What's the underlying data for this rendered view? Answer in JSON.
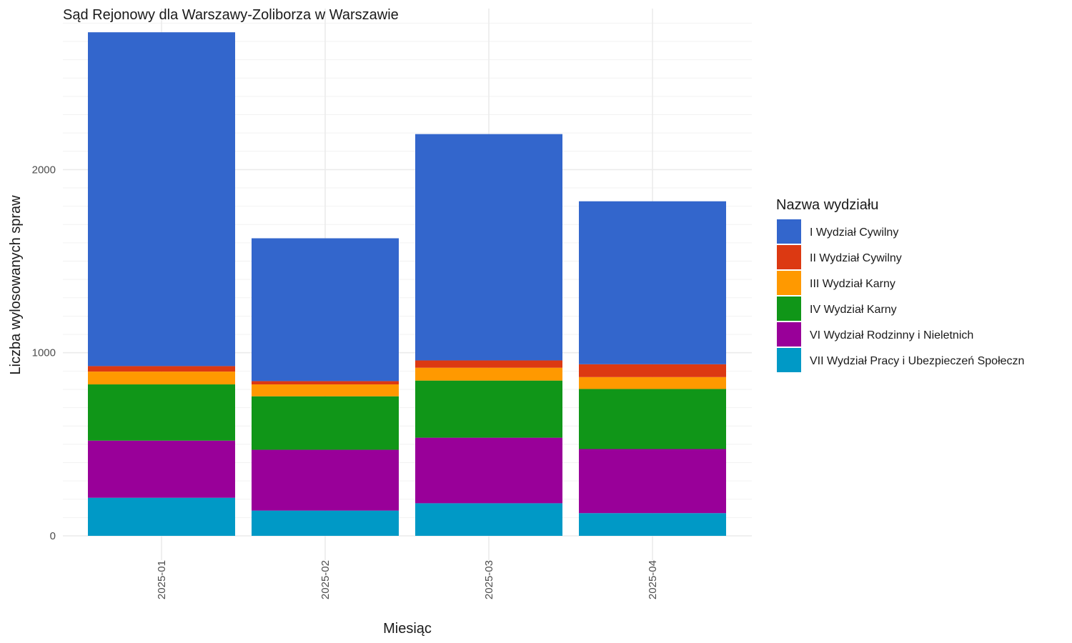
{
  "chart_data": {
    "type": "bar",
    "stacked": true,
    "title": "Sąd Rejonowy dla Warszawy-Zoliborza w Warszawie",
    "xlabel": "Miesiąc",
    "ylabel": "Liczba wylosowanych spraw",
    "categories": [
      "2025-01",
      "2025-02",
      "2025-03",
      "2025-04"
    ],
    "ylim": [
      0,
      2800
    ],
    "yticks": [
      "0",
      "1000",
      "2000"
    ],
    "grid": true,
    "legend_title": "Nazwa wydziału",
    "legend_position": "right",
    "series": [
      {
        "name": "VII Wydział Pracy i Ubezpieczeń Społeczn",
        "color": "#0099C6",
        "values": [
          208,
          138,
          178,
          124
        ]
      },
      {
        "name": "VI Wydział Rodzinny i Nieletnich",
        "color": "#990099",
        "values": [
          312,
          332,
          358,
          350
        ]
      },
      {
        "name": "IV Wydział Karny",
        "color": "#109618",
        "values": [
          307,
          292,
          312,
          328
        ]
      },
      {
        "name": "III Wydział Karny",
        "color": "#FF9900",
        "values": [
          70,
          65,
          70,
          65
        ]
      },
      {
        "name": "II Wydział Cywilny",
        "color": "#DC3912",
        "values": [
          30,
          18,
          40,
          70
        ]
      },
      {
        "name": "I Wydział Cywilny",
        "color": "#3366CC",
        "values": [
          1823,
          780,
          1236,
          890
        ]
      }
    ],
    "legend_order": [
      "I Wydział Cywilny",
      "II Wydział Cywilny",
      "III Wydział Karny",
      "IV Wydział Karny",
      "VI Wydział Rodzinny i Nieletnich",
      "VII Wydział Pracy i Ubezpieczeń Społeczn"
    ]
  }
}
